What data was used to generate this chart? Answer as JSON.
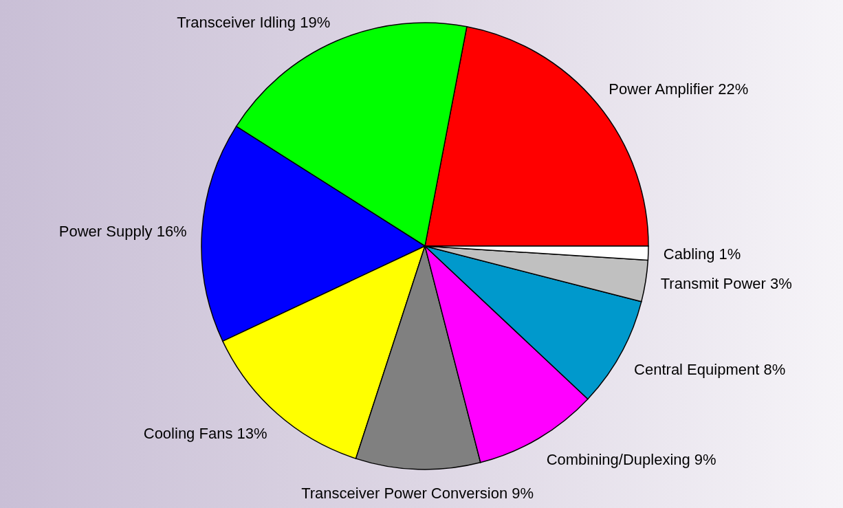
{
  "chart_data": {
    "type": "pie",
    "categories": [
      "Power Amplifier 22%",
      "Transceiver Idling 19%",
      "Power Supply 16%",
      "Cooling Fans 13%",
      "Transceiver Power Conversion 9%",
      "Combining/Duplexing 9%",
      "Central Equipment 8%",
      "Transmit Power 3%",
      "Cabling 1%"
    ],
    "values": [
      22,
      19,
      16,
      13,
      9,
      9,
      8,
      3,
      1
    ],
    "colors": [
      "#ff0000",
      "#00ff00",
      "#0000ff",
      "#ffff00",
      "#808080",
      "#ff00ff",
      "#0099cc",
      "#c0c0c0",
      "#ffffff"
    ]
  }
}
